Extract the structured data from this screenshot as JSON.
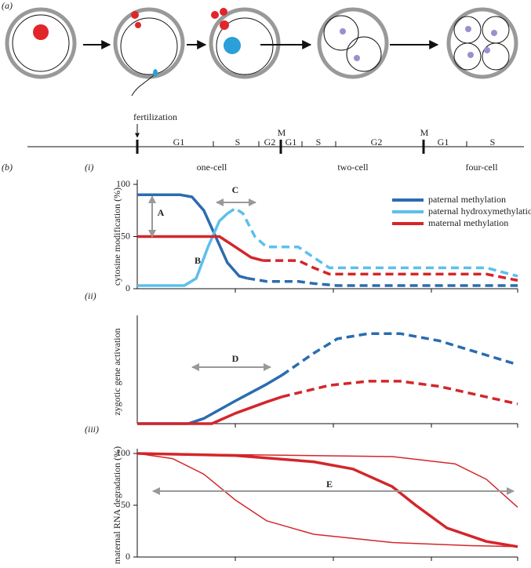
{
  "figure": {
    "panel_a": "(a)",
    "panel_b": "(b)",
    "timeline": {
      "fertilization": "fertilization",
      "phases": [
        "G1",
        "S",
        "G2",
        "M",
        "G1",
        "S",
        "G2",
        "M",
        "G1",
        "S"
      ],
      "stages": [
        "one-cell",
        "two-cell",
        "four-cell"
      ]
    }
  },
  "chart_data": [
    {
      "type": "line",
      "panel": "(i)",
      "ylabel": "cytosine modification (%)",
      "xlim": [
        0,
        100
      ],
      "ylim": [
        0,
        100
      ],
      "yticks": [
        0,
        50,
        100
      ],
      "annotations": [
        "A",
        "B",
        "C"
      ],
      "series": [
        {
          "name": "paternal methylation",
          "color": "#2b6cb0",
          "style": "solid",
          "x": [
            0,
            11.3,
            14.4,
            17.5,
            20.6,
            23.7,
            26.8,
            28.9
          ],
          "values": [
            90,
            90,
            88,
            75,
            50,
            25,
            12,
            10
          ]
        },
        {
          "color": "#2b6cb0",
          "style": "dashed",
          "x": [
            28.9,
            34,
            42.3,
            46.4,
            52.6,
            100
          ],
          "values": [
            10,
            7,
            7,
            5,
            3,
            3
          ]
        },
        {
          "name": "paternal hydroxymethylation",
          "color": "#5bc0ec",
          "style": "solid",
          "x": [
            0,
            12.4,
            15.5,
            18.6,
            21.6,
            23.7
          ],
          "values": [
            3,
            3,
            10,
            40,
            65,
            72
          ]
        },
        {
          "color": "#5bc0ec",
          "style": "dashed",
          "x": [
            23.7,
            25.8,
            27.8,
            30.9,
            34,
            42.3,
            46.4,
            50.5,
            91.8,
            100
          ],
          "values": [
            72,
            77,
            72,
            50,
            40,
            40,
            30,
            20,
            20,
            12
          ]
        },
        {
          "name": "maternal methylation",
          "color": "#d3262a",
          "style": "solid",
          "x": [
            0,
            17.5,
            21.6,
            25.8,
            29.9,
            33
          ],
          "values": [
            50,
            50,
            50,
            40,
            30,
            27
          ]
        },
        {
          "color": "#d3262a",
          "style": "dashed",
          "x": [
            33,
            42.3,
            46.4,
            50.5,
            91.8,
            100
          ],
          "values": [
            27,
            27,
            20,
            14,
            14,
            8
          ]
        }
      ]
    },
    {
      "type": "line",
      "panel": "(ii)",
      "ylabel": "zygotic gene activation",
      "xlim": [
        0,
        100
      ],
      "ylim": [
        0,
        100
      ],
      "annotations": [
        "D"
      ],
      "series": [
        {
          "color": "#2b6cb0",
          "style": "solid",
          "x": [
            0,
            13.4,
            17.5,
            25.8,
            34,
            38.1
          ],
          "values": [
            0,
            0,
            5,
            22,
            38,
            47
          ]
        },
        {
          "color": "#2b6cb0",
          "style": "dashed",
          "x": [
            38.1,
            46.4,
            52.6,
            60.8,
            69.1,
            79.4,
            100
          ],
          "values": [
            47,
            68,
            82,
            87,
            87,
            80,
            57
          ]
        },
        {
          "color": "#d3262a",
          "style": "solid",
          "x": [
            0,
            19.6,
            25.8,
            34,
            38.1
          ],
          "values": [
            0,
            0,
            10,
            21,
            26
          ]
        },
        {
          "color": "#d3262a",
          "style": "dashed",
          "x": [
            38.1,
            50.5,
            60.8,
            69.1,
            79.4,
            100
          ],
          "values": [
            26,
            37,
            41,
            41,
            36,
            19
          ]
        }
      ]
    },
    {
      "type": "line",
      "panel": "(iii)",
      "ylabel": "maternal RNA degradation (%)",
      "xlim": [
        0,
        100
      ],
      "ylim": [
        0,
        100
      ],
      "yticks": [
        0,
        50,
        100
      ],
      "annotations": [
        "E"
      ],
      "series": [
        {
          "color": "#d3262a",
          "style": "thick",
          "x": [
            0,
            25.8,
            46.4,
            56.7,
            67,
            73.2,
            81.4,
            91.8,
            100
          ],
          "values": [
            100,
            98,
            92,
            85,
            68,
            50,
            28,
            15,
            10
          ]
        },
        {
          "color": "#d3262a",
          "style": "thin",
          "x": [
            0,
            67,
            83.5,
            91.8,
            100
          ],
          "values": [
            100,
            97,
            90,
            75,
            48
          ]
        },
        {
          "color": "#d3262a",
          "style": "thin",
          "x": [
            0,
            9.3,
            17.5,
            25.8,
            34,
            46.4,
            67,
            87.6,
            100
          ],
          "values": [
            100,
            95,
            80,
            55,
            35,
            22,
            14,
            11,
            10
          ]
        }
      ]
    }
  ]
}
